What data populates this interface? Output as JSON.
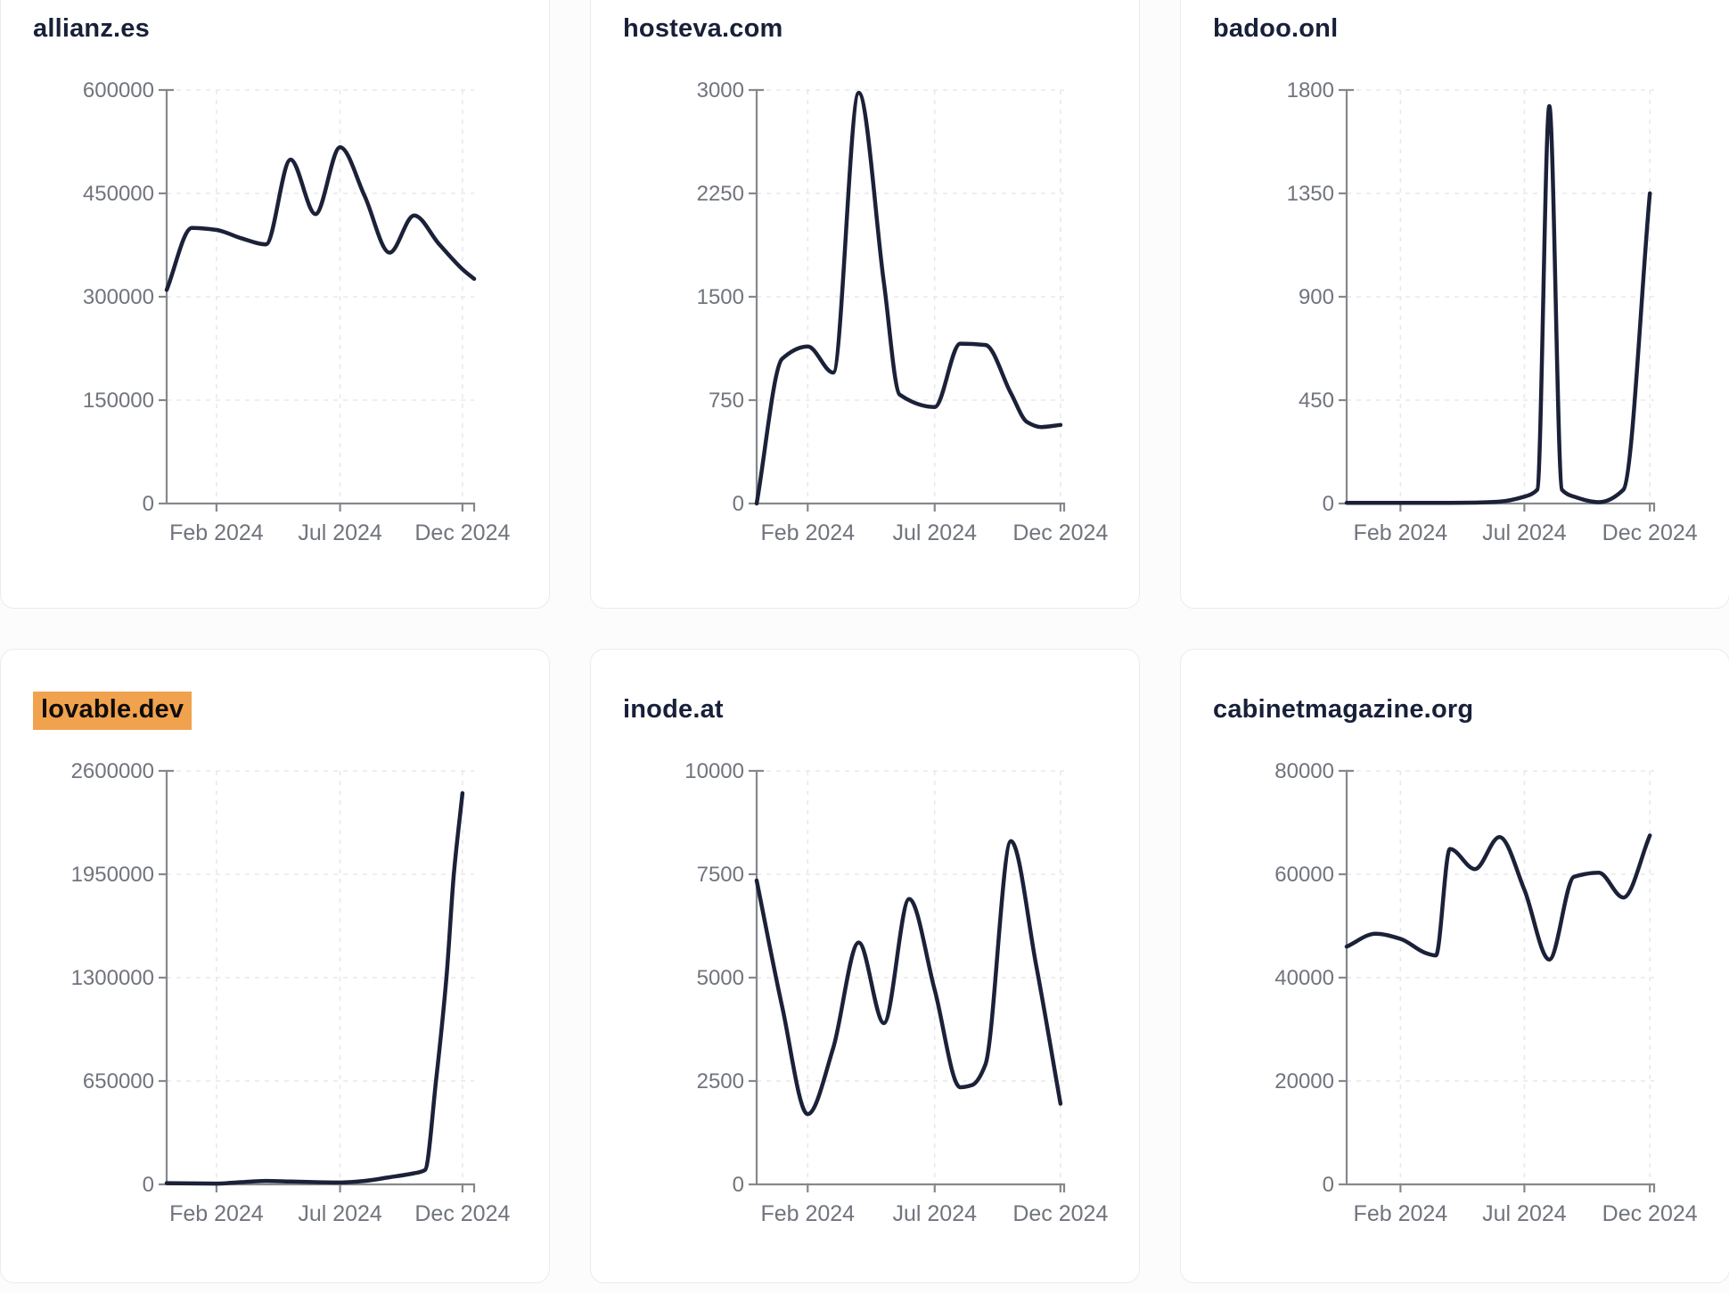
{
  "theme": {
    "page_background": "#fcfcfd",
    "card_background": "#ffffff",
    "card_border": "#e8ebf2",
    "title_color": "#182039",
    "highlight_color": "#f1a24e",
    "highlight_text_color": "#0d0d0d",
    "line_color": "#1b2138",
    "axis_color": "#85888c",
    "tick_label_color": "#70747c",
    "grid_color": "#e8e9ec"
  },
  "chart_data": [
    {
      "title": "allianz.es",
      "highlighted": false,
      "type": "line",
      "x_tick_labels": [
        "Feb 2024",
        "Jul 2024",
        "Dec 2024"
      ],
      "x_tick_pct": [
        16.2,
        56.4,
        96.2
      ],
      "ylim": [
        0,
        600000
      ],
      "y_ticks": [
        0,
        150000,
        300000,
        450000,
        600000
      ],
      "points": [
        [
          0,
          310000
        ],
        [
          8.2,
          400000
        ],
        [
          16.2,
          397000
        ],
        [
          24.2,
          385000
        ],
        [
          32.3,
          376000
        ],
        [
          40.3,
          499000
        ],
        [
          48.4,
          420000
        ],
        [
          56.4,
          517000
        ],
        [
          64.4,
          446000
        ],
        [
          72.5,
          364000
        ],
        [
          80.5,
          418000
        ],
        [
          88.5,
          377000
        ],
        [
          96.2,
          340000
        ],
        [
          100,
          326000
        ]
      ]
    },
    {
      "title": "hosteva.com",
      "highlighted": false,
      "type": "line",
      "x_tick_labels": [
        "Feb 2024",
        "Jul 2024",
        "Dec 2024"
      ],
      "x_tick_pct": [
        16.6,
        57.9,
        98.8
      ],
      "ylim": [
        0,
        3000
      ],
      "y_ticks": [
        0,
        750,
        1500,
        2250,
        3000
      ],
      "points": [
        [
          0,
          0
        ],
        [
          8.3,
          1050
        ],
        [
          16.6,
          1140
        ],
        [
          24.9,
          950
        ],
        [
          33.2,
          2980
        ],
        [
          41.4,
          1600
        ],
        [
          46.5,
          790
        ],
        [
          57.9,
          700
        ],
        [
          66.2,
          1160
        ],
        [
          74.4,
          1150
        ],
        [
          82.7,
          800
        ],
        [
          88,
          590
        ],
        [
          92.5,
          555
        ],
        [
          98.8,
          570
        ]
      ]
    },
    {
      "title": "badoo.onl",
      "highlighted": false,
      "type": "line",
      "x_tick_labels": [
        "Feb 2024",
        "Jul 2024",
        "Dec 2024"
      ],
      "x_tick_pct": [
        17.5,
        57.8,
        98.6
      ],
      "ylim": [
        0,
        1800
      ],
      "y_ticks": [
        0,
        450,
        900,
        1350,
        1800
      ],
      "points": [
        [
          0,
          3
        ],
        [
          9.4,
          3
        ],
        [
          17.5,
          3
        ],
        [
          25.6,
          3
        ],
        [
          33.6,
          3
        ],
        [
          41.7,
          4
        ],
        [
          49.7,
          8
        ],
        [
          57.8,
          30
        ],
        [
          62,
          60
        ],
        [
          65.9,
          1730
        ],
        [
          70,
          60
        ],
        [
          73.9,
          30
        ],
        [
          82,
          6
        ],
        [
          90,
          60
        ],
        [
          98.6,
          1350
        ]
      ]
    },
    {
      "title": "lovable.dev",
      "highlighted": true,
      "type": "line",
      "x_tick_labels": [
        "Feb 2024",
        "Jul 2024",
        "Dec 2024"
      ],
      "x_tick_pct": [
        16.2,
        56.4,
        96.2
      ],
      "ylim": [
        0,
        2600000
      ],
      "y_ticks": [
        0,
        650000,
        1300000,
        1950000,
        2600000
      ],
      "points": [
        [
          0,
          8000
        ],
        [
          8.2,
          6000
        ],
        [
          16.2,
          5000
        ],
        [
          24.2,
          14000
        ],
        [
          32.3,
          22000
        ],
        [
          40.3,
          18000
        ],
        [
          48.4,
          14000
        ],
        [
          56.4,
          12000
        ],
        [
          64.4,
          22000
        ],
        [
          72.5,
          45000
        ],
        [
          80.5,
          70000
        ],
        [
          84,
          90000
        ],
        [
          87.6,
          650000
        ],
        [
          91,
          1300000
        ],
        [
          93.4,
          1950000
        ],
        [
          96.2,
          2460000
        ]
      ]
    },
    {
      "title": "inode.at",
      "highlighted": false,
      "type": "line",
      "x_tick_labels": [
        "Feb 2024",
        "Jul 2024",
        "Dec 2024"
      ],
      "x_tick_pct": [
        16.6,
        57.9,
        98.8
      ],
      "ylim": [
        0,
        10000
      ],
      "y_ticks": [
        0,
        2500,
        5000,
        7500,
        10000
      ],
      "points": [
        [
          0,
          7350
        ],
        [
          8.3,
          4300
        ],
        [
          16.6,
          1700
        ],
        [
          24.9,
          3300
        ],
        [
          33.2,
          5850
        ],
        [
          41.4,
          3900
        ],
        [
          49.6,
          6900
        ],
        [
          57.9,
          4700
        ],
        [
          66.2,
          2350
        ],
        [
          70,
          2400
        ],
        [
          74.4,
          2900
        ],
        [
          82.7,
          8300
        ],
        [
          90.9,
          5300
        ],
        [
          98.8,
          1950
        ]
      ]
    },
    {
      "title": "cabinetmagazine.org",
      "highlighted": false,
      "type": "line",
      "x_tick_labels": [
        "Feb 2024",
        "Jul 2024",
        "Dec 2024"
      ],
      "x_tick_pct": [
        17.5,
        57.8,
        98.6
      ],
      "ylim": [
        0,
        80000
      ],
      "y_ticks": [
        0,
        20000,
        40000,
        60000,
        80000
      ],
      "points": [
        [
          0,
          46000
        ],
        [
          9.4,
          48500
        ],
        [
          17.5,
          47500
        ],
        [
          25.6,
          44800
        ],
        [
          29,
          44300
        ],
        [
          33.6,
          64900
        ],
        [
          41.7,
          61000
        ],
        [
          49.7,
          67200
        ],
        [
          57.8,
          57000
        ],
        [
          65.9,
          43500
        ],
        [
          73.9,
          59500
        ],
        [
          82,
          60300
        ],
        [
          90,
          55500
        ],
        [
          98.6,
          67500
        ]
      ]
    }
  ]
}
